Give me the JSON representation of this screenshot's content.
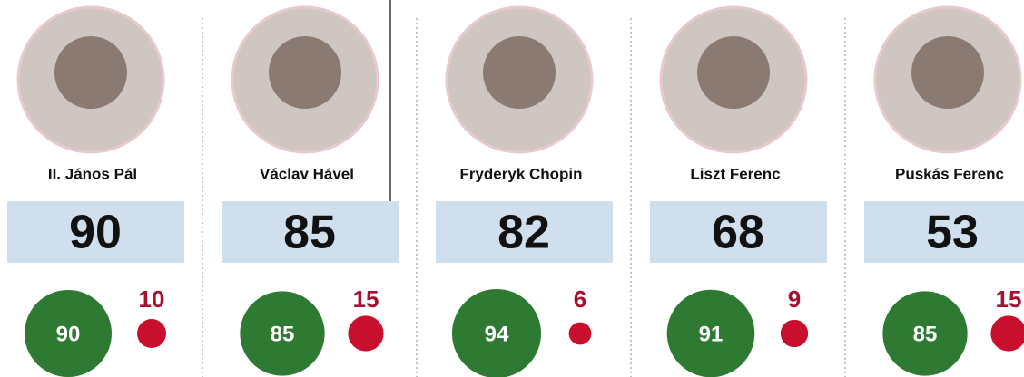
{
  "people": [
    {
      "name": "II. János Pál",
      "score": 90,
      "positive": 90,
      "negative": 10
    },
    {
      "name": "Václav Hável",
      "score": 85,
      "positive": 85,
      "negative": 15
    },
    {
      "name": "Fryderyk Chopin",
      "score": 82,
      "positive": 94,
      "negative": 6
    },
    {
      "name": "Liszt Ferenc",
      "score": 68,
      "positive": 91,
      "negative": 9
    },
    {
      "name": "Puskás Ferenc",
      "score": 53,
      "positive": 85,
      "negative": 15
    }
  ]
}
